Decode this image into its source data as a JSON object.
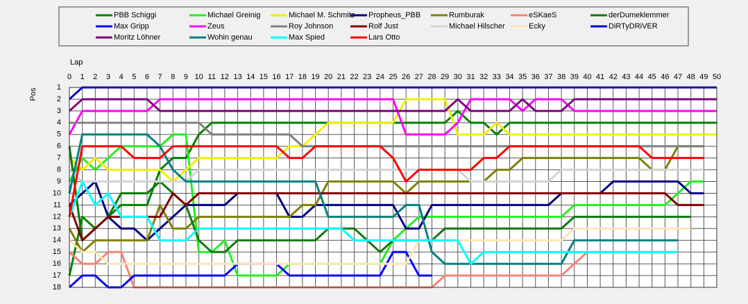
{
  "chart_data": {
    "type": "line",
    "x_label": "Lap",
    "y_label": "Pos",
    "x": [
      0,
      1,
      2,
      3,
      4,
      5,
      6,
      7,
      8,
      9,
      10,
      11,
      12,
      13,
      14,
      15,
      16,
      17,
      18,
      19,
      20,
      21,
      22,
      23,
      24,
      25,
      26,
      27,
      28,
      29,
      30,
      31,
      32,
      33,
      34,
      35,
      36,
      37,
      38,
      39,
      40,
      41,
      42,
      43,
      44,
      45,
      46,
      47,
      48,
      49,
      50
    ],
    "xlim": [
      0,
      50
    ],
    "xticks": [
      0,
      1,
      2,
      3,
      4,
      5,
      6,
      7,
      8,
      9,
      10,
      11,
      12,
      13,
      14,
      15,
      16,
      17,
      18,
      19,
      20,
      21,
      22,
      23,
      24,
      25,
      26,
      27,
      28,
      29,
      30,
      31,
      32,
      33,
      34,
      35,
      36,
      37,
      38,
      39,
      40,
      41,
      42,
      43,
      44,
      45,
      46,
      47,
      48,
      49,
      50
    ],
    "ylim": [
      1,
      18
    ],
    "y_inverted": true,
    "yticks": [
      1,
      2,
      3,
      4,
      5,
      6,
      7,
      8,
      9,
      10,
      11,
      12,
      13,
      14,
      15,
      16,
      17,
      18
    ],
    "grid": true,
    "legend": "top",
    "series": [
      {
        "name": "PBB Schiggi",
        "color": "#008000",
        "values": [
          17,
          12,
          13,
          12,
          11,
          11,
          11,
          8,
          7,
          7,
          5,
          4,
          4,
          4,
          4,
          4,
          4,
          4,
          4,
          4,
          4,
          4,
          4,
          4,
          4,
          4,
          4,
          4,
          4,
          4,
          3,
          4,
          4,
          5,
          4,
          4,
          4,
          4,
          4,
          4,
          4,
          4,
          4,
          4,
          4,
          4,
          4,
          4,
          4,
          4,
          4
        ]
      },
      {
        "name": "Michael Greinig",
        "color": "#22ee22",
        "values": [
          9,
          7,
          8,
          7,
          6,
          6,
          6,
          6,
          5,
          5,
          15,
          15,
          14,
          17,
          17,
          17,
          17,
          16,
          16,
          16,
          16,
          16,
          16,
          16,
          16,
          14,
          13,
          12,
          12,
          12,
          12,
          12,
          12,
          12,
          12,
          12,
          12,
          12,
          12,
          11,
          11,
          11,
          11,
          11,
          11,
          11,
          11,
          10,
          9,
          9,
          null
        ]
      },
      {
        "name": "Michael M. Schmitz",
        "color": "#f0f000",
        "values": [
          7,
          8,
          7,
          8,
          8,
          8,
          8,
          8,
          9,
          8,
          7,
          7,
          7,
          7,
          7,
          7,
          7,
          6,
          6,
          5,
          4,
          4,
          4,
          4,
          4,
          4,
          2,
          2,
          2,
          2,
          5,
          5,
          5,
          4,
          5,
          5,
          5,
          5,
          5,
          5,
          5,
          5,
          5,
          5,
          5,
          5,
          5,
          5,
          5,
          5,
          5
        ]
      },
      {
        "name": "Propheus_PBB",
        "color": "#000080",
        "values": [
          11,
          10,
          9,
          12,
          13,
          13,
          14,
          13,
          12,
          11,
          11,
          11,
          11,
          10,
          10,
          10,
          10,
          12,
          12,
          11,
          11,
          11,
          11,
          11,
          11,
          11,
          13,
          13,
          11,
          11,
          11,
          11,
          11,
          11,
          11,
          11,
          11,
          11,
          10,
          10,
          10,
          10,
          9,
          9,
          9,
          9,
          9,
          9,
          10,
          10,
          null
        ]
      },
      {
        "name": "Rumburak",
        "color": "#808000",
        "values": [
          13,
          15,
          14,
          14,
          14,
          14,
          14,
          11,
          13,
          13,
          12,
          12,
          12,
          12,
          12,
          12,
          12,
          12,
          11,
          11,
          9,
          9,
          9,
          9,
          9,
          9,
          10,
          9,
          9,
          9,
          9,
          9,
          9,
          8,
          8,
          7,
          7,
          7,
          7,
          7,
          7,
          7,
          7,
          7,
          7,
          8,
          8,
          6,
          6,
          6,
          null
        ]
      },
      {
        "name": "eSKaeS",
        "color": "#fa8072",
        "values": [
          15,
          16,
          16,
          15,
          15,
          18,
          18,
          18,
          18,
          18,
          18,
          18,
          18,
          18,
          18,
          18,
          18,
          18,
          18,
          18,
          18,
          18,
          18,
          18,
          18,
          18,
          18,
          18,
          18,
          17,
          17,
          17,
          17,
          17,
          17,
          17,
          17,
          17,
          17,
          16,
          15,
          15,
          15,
          15,
          15,
          15,
          15,
          15,
          null,
          null,
          null
        ]
      },
      {
        "name": "derDumeklemmer",
        "color": "#0b7a0b",
        "values": [
          6,
          14,
          13,
          12,
          10,
          10,
          10,
          9,
          10,
          11,
          14,
          15,
          15,
          14,
          14,
          14,
          14,
          14,
          14,
          14,
          13,
          13,
          13,
          14,
          15,
          14,
          14,
          14,
          14,
          13,
          13,
          13,
          13,
          13,
          13,
          13,
          13,
          13,
          13,
          12,
          12,
          12,
          12,
          12,
          12,
          12,
          12,
          12,
          12,
          null,
          null
        ]
      },
      {
        "name": "Max Gripp",
        "color": "#0000ff",
        "values": [
          18,
          17,
          17,
          18,
          18,
          17,
          17,
          17,
          17,
          17,
          17,
          17,
          17,
          16,
          16,
          16,
          16,
          17,
          17,
          17,
          17,
          17,
          17,
          17,
          17,
          15,
          15,
          17,
          17,
          null,
          null,
          null,
          null,
          null,
          null,
          null,
          null,
          null,
          null,
          null,
          null,
          null,
          null,
          null,
          null,
          null,
          null,
          null,
          null,
          null,
          null
        ]
      },
      {
        "name": "Zeus",
        "color": "#ff00ff",
        "values": [
          5,
          3,
          3,
          3,
          3,
          3,
          3,
          2,
          2,
          2,
          2,
          2,
          2,
          2,
          2,
          2,
          2,
          2,
          2,
          2,
          2,
          2,
          2,
          2,
          2,
          2,
          5,
          5,
          5,
          5,
          4,
          2,
          2,
          2,
          2,
          3,
          2,
          2,
          2,
          3,
          3,
          3,
          3,
          3,
          3,
          3,
          3,
          3,
          3,
          3,
          3
        ]
      },
      {
        "name": "Roy Johnson",
        "color": "#808080",
        "values": [
          4,
          4,
          4,
          4,
          4,
          4,
          4,
          4,
          4,
          4,
          4,
          5,
          5,
          5,
          5,
          5,
          5,
          5,
          6,
          6,
          6,
          6,
          6,
          6,
          6,
          6,
          6,
          6,
          6,
          6,
          6,
          6,
          6,
          6,
          6,
          6,
          6,
          6,
          6,
          6,
          6,
          6,
          6,
          6,
          6,
          6,
          6,
          6,
          6,
          6,
          null
        ]
      },
      {
        "name": "Rolf Just",
        "color": "#800000",
        "values": [
          11,
          14,
          13,
          12,
          12,
          12,
          12,
          12,
          10,
          11,
          10,
          10,
          10,
          10,
          10,
          10,
          10,
          10,
          10,
          10,
          10,
          10,
          10,
          10,
          10,
          10,
          10,
          10,
          10,
          10,
          10,
          10,
          10,
          10,
          10,
          10,
          10,
          10,
          10,
          10,
          10,
          10,
          10,
          10,
          10,
          10,
          10,
          11,
          11,
          11,
          null
        ]
      },
      {
        "name": "Michael Hilscher",
        "color": "#d3d3d3",
        "values": [
          8,
          9,
          9,
          9,
          9,
          9,
          9,
          9,
          9,
          9,
          8,
          8,
          8,
          8,
          8,
          8,
          8,
          8,
          8,
          8,
          8,
          8,
          8,
          8,
          8,
          8,
          8,
          8,
          8,
          8,
          8,
          9,
          9,
          9,
          9,
          9,
          9,
          9,
          8,
          8,
          8,
          8,
          8,
          8,
          8,
          8,
          8,
          8,
          8,
          8,
          null
        ]
      },
      {
        "name": "Ecky",
        "color": "#ffe4b5",
        "values": [
          14,
          15,
          15,
          16,
          16,
          16,
          16,
          16,
          16,
          16,
          16,
          16,
          16,
          16,
          16,
          16,
          16,
          16,
          16,
          16,
          16,
          16,
          16,
          16,
          16,
          16,
          16,
          14,
          14,
          14,
          14,
          14,
          14,
          14,
          14,
          14,
          14,
          14,
          14,
          13,
          13,
          13,
          13,
          13,
          13,
          13,
          13,
          13,
          13,
          null,
          null
        ]
      },
      {
        "name": "DiRTyDRiVER",
        "color": "#0000cd",
        "values": [
          2,
          1,
          1,
          1,
          1,
          1,
          1,
          1,
          1,
          1,
          1,
          1,
          1,
          1,
          1,
          1,
          1,
          1,
          1,
          1,
          1,
          1,
          1,
          1,
          1,
          1,
          1,
          1,
          1,
          1,
          1,
          1,
          1,
          1,
          1,
          1,
          1,
          1,
          1,
          1,
          1,
          1,
          1,
          1,
          1,
          1,
          1,
          1,
          1,
          1,
          1
        ]
      },
      {
        "name": "Moritz Löhner",
        "color": "#800080",
        "values": [
          3,
          2,
          2,
          2,
          2,
          2,
          2,
          3,
          3,
          3,
          3,
          3,
          3,
          3,
          3,
          3,
          3,
          3,
          3,
          3,
          3,
          3,
          3,
          3,
          3,
          3,
          3,
          3,
          3,
          3,
          2,
          3,
          3,
          3,
          3,
          2,
          3,
          3,
          3,
          2,
          2,
          2,
          2,
          2,
          2,
          2,
          2,
          2,
          2,
          2,
          2
        ]
      },
      {
        "name": "Wohin genau",
        "color": "#008080",
        "values": [
          10,
          5,
          5,
          5,
          5,
          5,
          5,
          6,
          8,
          9,
          9,
          9,
          9,
          9,
          9,
          9,
          9,
          9,
          9,
          9,
          12,
          12,
          12,
          12,
          12,
          12,
          11,
          11,
          15,
          16,
          16,
          16,
          16,
          16,
          16,
          16,
          16,
          16,
          16,
          14,
          14,
          14,
          14,
          14,
          14,
          14,
          14,
          14,
          null,
          null,
          null
        ]
      },
      {
        "name": "Max Spied",
        "color": "#00ffff",
        "values": [
          12,
          9,
          11,
          10,
          12,
          12,
          12,
          14,
          14,
          14,
          13,
          13,
          13,
          13,
          13,
          13,
          13,
          13,
          13,
          13,
          13,
          13,
          14,
          14,
          14,
          14,
          14,
          14,
          14,
          14,
          14,
          16,
          15,
          15,
          15,
          15,
          15,
          15,
          15,
          15,
          15,
          15,
          15,
          15,
          15,
          15,
          15,
          15,
          null,
          null,
          null
        ]
      },
      {
        "name": "Lars Otto",
        "color": "#ff0000",
        "values": [
          12,
          6,
          6,
          6,
          6,
          7,
          7,
          7,
          6,
          6,
          6,
          6,
          6,
          6,
          6,
          6,
          6,
          7,
          7,
          6,
          6,
          6,
          6,
          6,
          6,
          7,
          9,
          8,
          8,
          8,
          8,
          8,
          7,
          7,
          6,
          6,
          6,
          6,
          6,
          6,
          6,
          6,
          6,
          6,
          6,
          7,
          7,
          7,
          7,
          7,
          null
        ]
      }
    ]
  }
}
